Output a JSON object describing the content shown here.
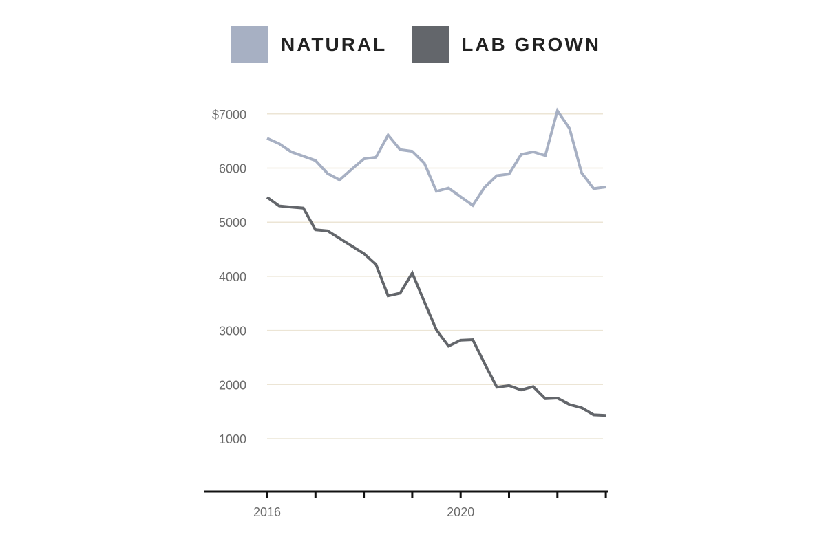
{
  "chart_data": {
    "type": "line",
    "title": "",
    "xlabel": "",
    "ylabel": "",
    "x_start": 2016,
    "x_step": 0.25,
    "xlim": [
      2015.75,
      2023.25
    ],
    "ylim": [
      0,
      7000
    ],
    "y_ticks": [
      1000,
      2000,
      3000,
      4000,
      5000,
      6000,
      7000
    ],
    "y_tick_labels": [
      "1000",
      "2000",
      "3000",
      "4000",
      "5000",
      "6000",
      "$7000"
    ],
    "x_ticks": [
      2016,
      2017,
      2018,
      2019,
      2020,
      2021,
      2022,
      2023
    ],
    "x_tick_labels": [
      "2016",
      "",
      "",
      "",
      "2020",
      "",
      "",
      ""
    ],
    "grid": true,
    "legend_placement": "top",
    "series": [
      {
        "name": "NATURAL",
        "color": "#a7b0c3",
        "values": [
          6550,
          6450,
          6300,
          6220,
          6140,
          5900,
          5780,
          5980,
          6170,
          6200,
          6610,
          6340,
          6310,
          6090,
          5570,
          5630,
          5470,
          5310,
          5650,
          5860,
          5890,
          6250,
          6300,
          6230,
          7060,
          6730,
          5910,
          5620,
          5650
        ]
      },
      {
        "name": "LAB GROWN",
        "color": "#63666b",
        "values": [
          5460,
          5300,
          5280,
          5260,
          4860,
          4840,
          4700,
          4560,
          4420,
          4220,
          3640,
          3690,
          4060,
          3530,
          3010,
          2710,
          2820,
          2830,
          2380,
          1950,
          1980,
          1900,
          1960,
          1740,
          1750,
          1630,
          1570,
          1440,
          1430
        ]
      }
    ]
  }
}
